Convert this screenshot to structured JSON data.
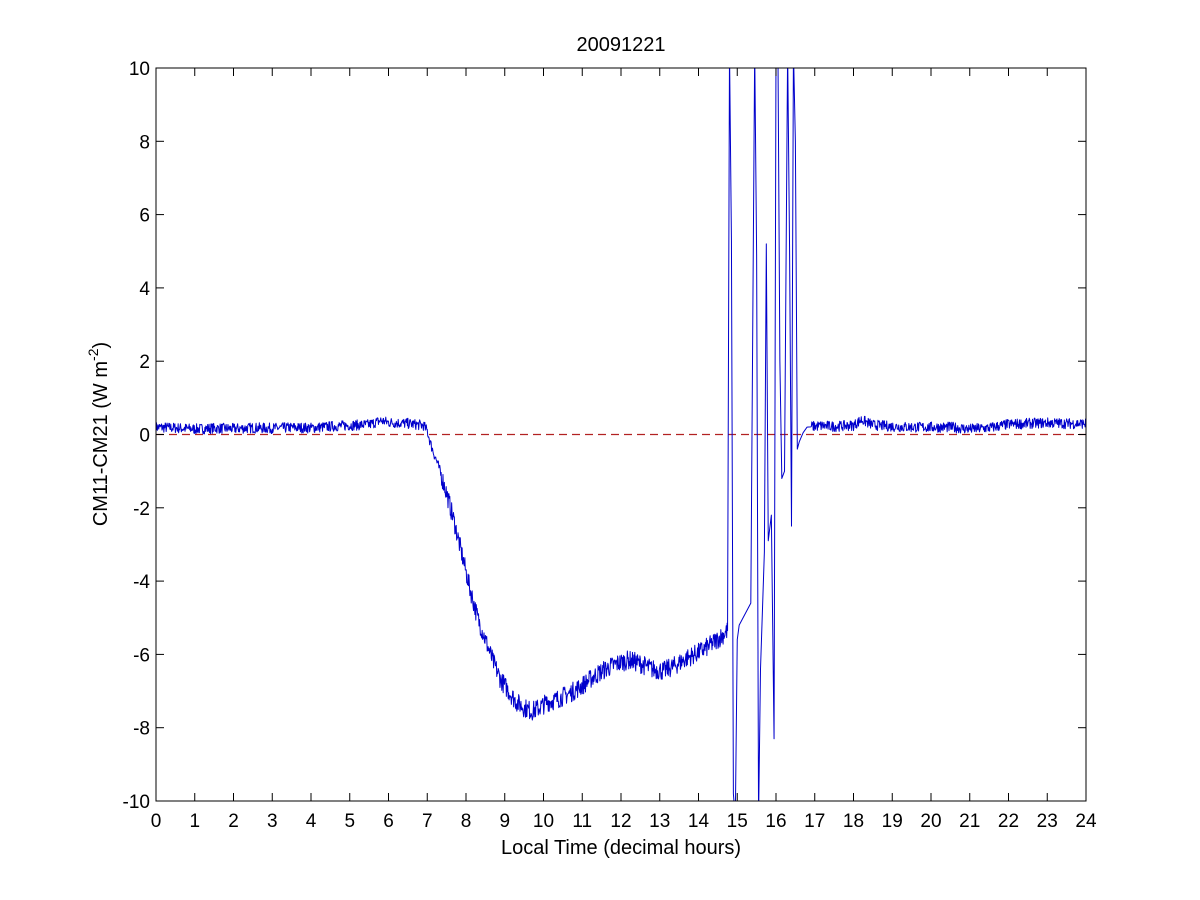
{
  "chart_data": {
    "type": "line",
    "title": "20091221",
    "xlabel": "Local Time (decimal hours)",
    "ylabel_main": "CM11-CM21 (W m",
    "ylabel_sup": "-2",
    "ylabel_close": ")",
    "xlim": [
      0,
      24
    ],
    "ylim": [
      -10,
      10
    ],
    "xticks": [
      0,
      1,
      2,
      3,
      4,
      5,
      6,
      7,
      8,
      9,
      10,
      11,
      12,
      13,
      14,
      15,
      16,
      17,
      18,
      19,
      20,
      21,
      22,
      23,
      24
    ],
    "yticks": [
      -10,
      -8,
      -6,
      -4,
      -2,
      0,
      2,
      4,
      6,
      8,
      10
    ],
    "grid": false,
    "reference_line": {
      "y": 0,
      "style": "dashed",
      "color": "#b22222"
    },
    "colors": {
      "series": "#0000cc",
      "reference": "#b22222",
      "axes": "#000000"
    },
    "series": [
      {
        "color": "#0000cc",
        "noise": 0.12,
        "points": [
          [
            0.0,
            0.2
          ],
          [
            0.5,
            0.18
          ],
          [
            1.0,
            0.15
          ],
          [
            1.5,
            0.17
          ],
          [
            2.0,
            0.16
          ],
          [
            2.5,
            0.18
          ],
          [
            3.0,
            0.17
          ],
          [
            3.5,
            0.19
          ],
          [
            4.0,
            0.18
          ],
          [
            4.5,
            0.22
          ],
          [
            5.0,
            0.25
          ],
          [
            5.5,
            0.27
          ],
          [
            5.8,
            0.38
          ],
          [
            6.0,
            0.33
          ],
          [
            6.5,
            0.3
          ],
          [
            6.9,
            0.25
          ],
          [
            7.0,
            0.1
          ],
          [
            7.1,
            -0.3
          ],
          [
            7.3,
            -0.9
          ],
          [
            7.5,
            -1.6
          ],
          [
            7.7,
            -2.4
          ],
          [
            7.9,
            -3.3
          ],
          [
            8.1,
            -4.2
          ],
          [
            8.3,
            -5.0
          ],
          [
            8.5,
            -5.6
          ],
          [
            8.7,
            -6.2
          ],
          [
            8.9,
            -6.7
          ],
          [
            9.1,
            -7.0
          ],
          [
            9.3,
            -7.3
          ],
          [
            9.5,
            -7.45
          ],
          [
            9.7,
            -7.55
          ],
          [
            9.9,
            -7.45
          ],
          [
            10.1,
            -7.3
          ],
          [
            10.3,
            -7.25
          ],
          [
            10.5,
            -7.15
          ],
          [
            10.7,
            -7.05
          ],
          [
            11.0,
            -6.85
          ],
          [
            11.3,
            -6.6
          ],
          [
            11.6,
            -6.4
          ],
          [
            11.9,
            -6.25
          ],
          [
            12.2,
            -6.15
          ],
          [
            12.5,
            -6.25
          ],
          [
            12.8,
            -6.4
          ],
          [
            13.1,
            -6.45
          ],
          [
            13.4,
            -6.3
          ],
          [
            13.7,
            -6.1
          ],
          [
            14.0,
            -5.95
          ],
          [
            14.3,
            -5.75
          ],
          [
            14.6,
            -5.5
          ],
          [
            14.75,
            -5.35
          ]
        ],
        "spikes": [
          [
            14.8,
            10.5
          ],
          [
            14.85,
            5.3
          ],
          [
            14.9,
            -9.8
          ],
          [
            14.95,
            -10.5
          ],
          [
            15.0,
            -5.6
          ],
          [
            15.05,
            -5.2
          ],
          [
            15.2,
            -4.9
          ],
          [
            15.35,
            -4.6
          ],
          [
            15.45,
            10.5
          ],
          [
            15.5,
            4.9
          ],
          [
            15.55,
            -10.5
          ],
          [
            15.6,
            -6.4
          ],
          [
            15.7,
            -3.2
          ],
          [
            15.75,
            5.2
          ],
          [
            15.8,
            -2.9
          ],
          [
            15.88,
            -2.2
          ],
          [
            15.95,
            -8.3
          ],
          [
            16.0,
            10.5
          ],
          [
            16.05,
            10.5
          ],
          [
            16.1,
            2.0
          ],
          [
            16.15,
            -1.2
          ],
          [
            16.22,
            -1.0
          ],
          [
            16.3,
            10.5
          ],
          [
            16.35,
            5.1
          ],
          [
            16.4,
            -2.5
          ],
          [
            16.45,
            10.5
          ],
          [
            16.5,
            8.0
          ],
          [
            16.55,
            -0.4
          ],
          [
            16.6,
            -0.2
          ],
          [
            16.7,
            0.05
          ],
          [
            16.8,
            0.2
          ]
        ],
        "tail": [
          [
            16.9,
            0.22
          ],
          [
            17.2,
            0.24
          ],
          [
            17.5,
            0.22
          ],
          [
            18.0,
            0.25
          ],
          [
            18.2,
            0.4
          ],
          [
            18.5,
            0.26
          ],
          [
            19.0,
            0.22
          ],
          [
            19.5,
            0.2
          ],
          [
            20.0,
            0.2
          ],
          [
            20.5,
            0.2
          ],
          [
            21.0,
            0.15
          ],
          [
            21.5,
            0.18
          ],
          [
            22.0,
            0.28
          ],
          [
            22.5,
            0.3
          ],
          [
            23.0,
            0.32
          ],
          [
            23.5,
            0.3
          ],
          [
            24.0,
            0.3
          ]
        ]
      }
    ]
  }
}
